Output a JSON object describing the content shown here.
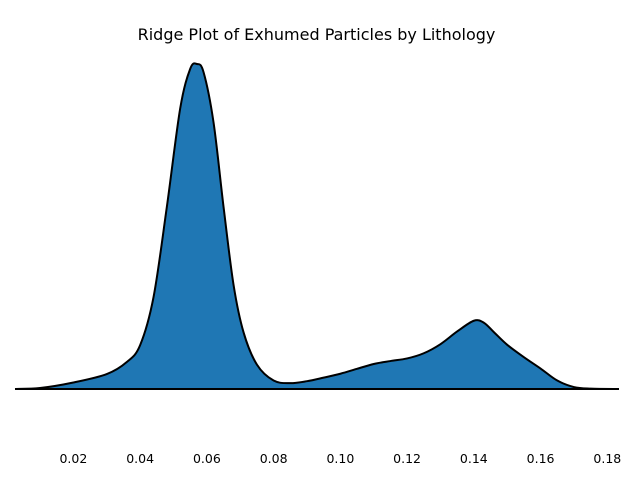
{
  "chart_data": {
    "type": "area",
    "title": "Ridge Plot of Exhumed Particles by Lithology",
    "xlabel": "",
    "ylabel": "",
    "xlim": [
      0.0025,
      0.1835
    ],
    "ylim": [
      -0.13,
      1.0
    ],
    "grid": false,
    "x_ticks": [
      0.02,
      0.04,
      0.06,
      0.08,
      0.1,
      0.12,
      0.14,
      0.16,
      0.18
    ],
    "x_tick_labels": [
      "0.02",
      "0.04",
      "0.06",
      "0.08",
      "0.10",
      "0.12",
      "0.14",
      "0.16",
      "0.18"
    ],
    "fill_color": "#1f77b4",
    "line_color": "#000000",
    "series": [
      {
        "x": [
          0.0025,
          0.01,
          0.02,
          0.03,
          0.036,
          0.04,
          0.044,
          0.048,
          0.052,
          0.055,
          0.057,
          0.059,
          0.062,
          0.065,
          0.068,
          0.071,
          0.075,
          0.08,
          0.085,
          0.09,
          0.095,
          0.1,
          0.105,
          0.11,
          0.115,
          0.12,
          0.125,
          0.13,
          0.135,
          0.14,
          0.143,
          0.146,
          0.15,
          0.155,
          0.16,
          0.165,
          0.17,
          0.175,
          0.1835
        ],
        "y": [
          0.0,
          0.003,
          0.02,
          0.046,
          0.083,
          0.135,
          0.282,
          0.56,
          0.863,
          0.985,
          1.0,
          0.975,
          0.82,
          0.56,
          0.32,
          0.174,
          0.075,
          0.026,
          0.018,
          0.024,
          0.035,
          0.047,
          0.062,
          0.077,
          0.086,
          0.094,
          0.11,
          0.138,
          0.177,
          0.21,
          0.204,
          0.175,
          0.136,
          0.098,
          0.063,
          0.026,
          0.006,
          0.001,
          0.0
        ]
      }
    ]
  }
}
